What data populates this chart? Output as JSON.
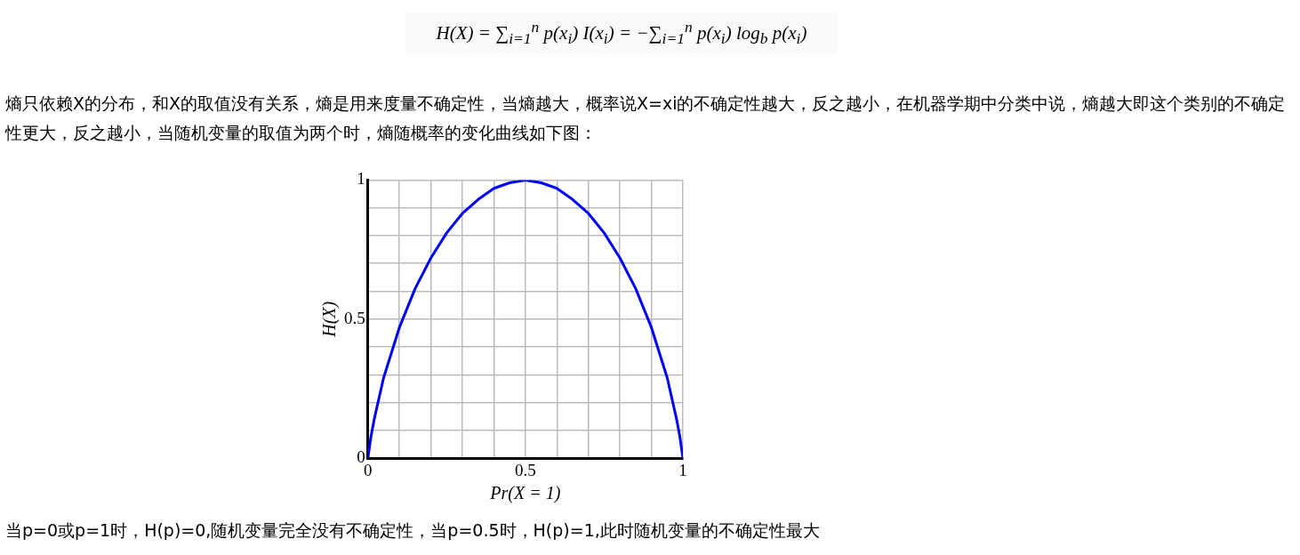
{
  "chart_data": {
    "type": "line",
    "xlabel": "Pr(X = 1)",
    "ylabel": "H(X)",
    "x": [
      0,
      0.01,
      0.02,
      0.05,
      0.1,
      0.15,
      0.2,
      0.25,
      0.3,
      0.35,
      0.4,
      0.45,
      0.5,
      0.55,
      0.6,
      0.65,
      0.7,
      0.75,
      0.8,
      0.85,
      0.9,
      0.95,
      0.98,
      0.99,
      1
    ],
    "series": [
      {
        "color": "#0000ff",
        "values": [
          0,
          0.08,
          0.14,
          0.29,
          0.47,
          0.61,
          0.72,
          0.81,
          0.88,
          0.93,
          0.97,
          0.99,
          1,
          0.99,
          0.97,
          0.93,
          0.88,
          0.81,
          0.72,
          0.61,
          0.47,
          0.29,
          0.14,
          0.08,
          0
        ]
      }
    ],
    "xlim": [
      0,
      1
    ],
    "ylim": [
      0,
      1
    ],
    "xticks": [
      0,
      {
        "value": 0.1,
        "label": null
      },
      {
        "value": 0.2,
        "label": null
      },
      {
        "value": 0.3,
        "label": null
      },
      {
        "value": 0.4,
        "label": null
      },
      0.5,
      {
        "value": 0.6,
        "label": null
      },
      {
        "value": 0.7,
        "label": null
      },
      {
        "value": 0.8,
        "label": null
      },
      {
        "value": 0.9,
        "label": null
      },
      1
    ],
    "yticks": [
      0,
      {
        "value": 0.1,
        "label": null
      },
      {
        "value": 0.2,
        "label": null
      },
      {
        "value": 0.3,
        "label": null
      },
      {
        "value": 0.4,
        "label": null
      },
      0.5,
      {
        "value": 0.6,
        "label": null
      },
      {
        "value": 0.7,
        "label": null
      },
      {
        "value": 0.8,
        "label": null
      },
      {
        "value": 0.9,
        "label": null
      },
      1
    ],
    "grid": true,
    "marker": "none",
    "line_style": "solid",
    "annotations": [
      "H(X) = ∑$_{i=1}$$^{n}$ p(x$_{i}$) I(x$_{i}$) = −∑$_{i=1}$$^{n}$ p(x$_{i}$) log$_{b}$ p(x$_{i}$)",
      "熵只依赖X的分布，和X的取值没有关系，熵是用来度量不确定性，当熵越大，概率说X=xi的不确定性越大，反之越小，在机器学期中分类中说，熵越大即这个类别的不确定性更大，反之越小，当随机变量的取值为两个时，熵随概率的变化曲线如下图：",
      "当p=0或p=1时，H(p)=0,随机变量完全没有不确定性，当p=0.5时，H(p)=1,此时随机变量的不确定性最大"
    ]
  }
}
